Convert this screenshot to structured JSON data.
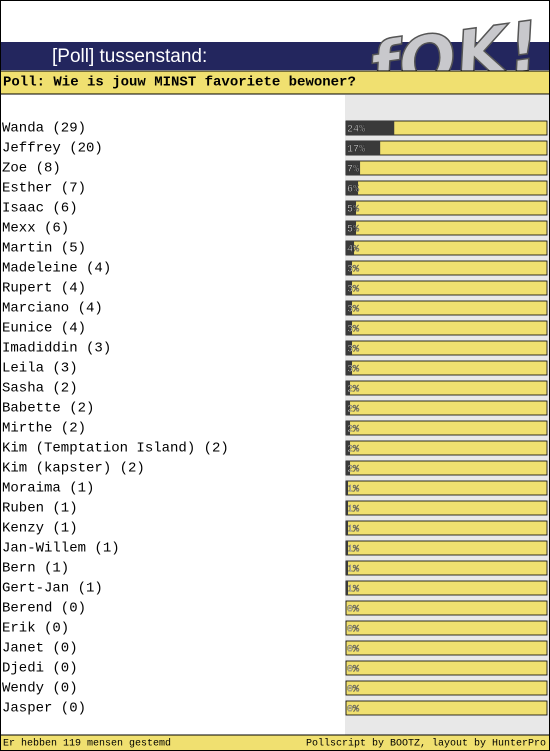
{
  "header": {
    "title": "[Poll] tussenstand:",
    "logo": "fOK!"
  },
  "chart_data": {
    "type": "bar",
    "title": "Poll: Wie is jouw MINST favoriete bewoner?",
    "categories": [
      "Wanda (29)",
      "Jeffrey (20)",
      "Zoe (8)",
      "Esther (7)",
      "Isaac (6)",
      "Mexx (6)",
      "Martin (5)",
      "Madeleine (4)",
      "Rupert (4)",
      "Marciano (4)",
      "Eunice (4)",
      "Imadiddin (3)",
      "Leila (3)",
      "Sasha (2)",
      "Babette (2)",
      "Mirthe (2)",
      "Kim (Temptation Island) (2)",
      "Kim (kapster) (2)",
      "Moraima (1)",
      "Ruben (1)",
      "Kenzy (1)",
      "Jan-Willem (1)",
      "Bern (1)",
      "Gert-Jan (1)",
      "Berend (0)",
      "Erik (0)",
      "Janet (0)",
      "Djedi (0)",
      "Wendy (0)",
      "Jasper (0)"
    ],
    "values": [
      24,
      17,
      7,
      6,
      5,
      5,
      4,
      3,
      3,
      3,
      3,
      3,
      3,
      2,
      2,
      2,
      2,
      2,
      1,
      1,
      1,
      1,
      1,
      1,
      0,
      0,
      0,
      0,
      0,
      0
    ],
    "value_labels": [
      "24%",
      "17%",
      "7%",
      "6%",
      "5%",
      "5%",
      "4%",
      "3%",
      "3%",
      "3%",
      "3%",
      "3%",
      "3%",
      "2%",
      "2%",
      "2%",
      "2%",
      "2%",
      "1%",
      "1%",
      "1%",
      "1%",
      "1%",
      "1%",
      "0%",
      "0%",
      "0%",
      "0%",
      "0%",
      "0%"
    ],
    "color": "#3a3a3a",
    "xlim": [
      0,
      100
    ]
  },
  "footer": {
    "left": "Er hebben 119 mensen gestemd",
    "right": "Pollscript by BOOTZ, layout by HunterPro"
  }
}
